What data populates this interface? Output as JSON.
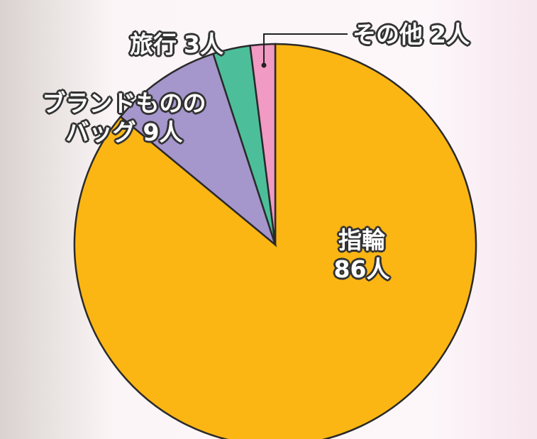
{
  "chart_data": {
    "type": "pie",
    "categories": [
      "指輪",
      "ブランドもののバッグ",
      "旅行",
      "その他"
    ],
    "values": [
      86,
      9,
      3,
      2
    ],
    "value_labels": [
      "86人",
      "9人",
      "3人",
      "2人"
    ],
    "colors": [
      "#fbb614",
      "#a596cc",
      "#4cbf9a",
      "#f19ac3"
    ]
  }
}
